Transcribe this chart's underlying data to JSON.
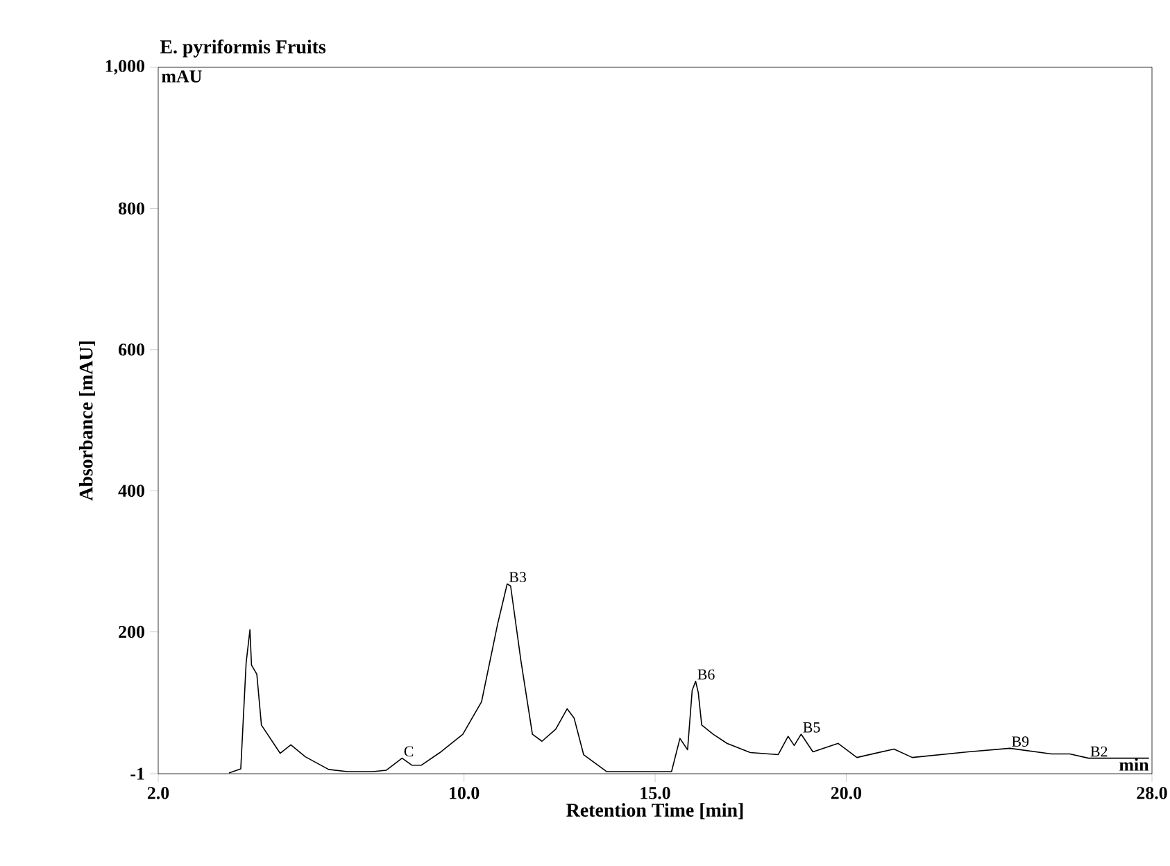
{
  "chart_data": {
    "type": "line",
    "title": "E. pyriformis Fruits",
    "xlabel": "Retention Time [min]",
    "ylabel": "Absorbance [mAU]",
    "xlim": [
      2,
      28
    ],
    "ylim": [
      -1,
      1000
    ],
    "xticks": [
      {
        "value": 2,
        "label": "2.0"
      },
      {
        "value": 10,
        "label": "10.0"
      },
      {
        "value": 15,
        "label": "15.0"
      },
      {
        "value": 20,
        "label": "20.0"
      },
      {
        "value": 28,
        "label": "28.0"
      }
    ],
    "yticks": [
      -1,
      200,
      400,
      600,
      800,
      {
        "value": 1000,
        "label": "1,000"
      }
    ],
    "grid": false,
    "marker": "none",
    "line_style": "solid",
    "series": [
      {
        "color": "#000000",
        "x": [
          3.85,
          4.16,
          4.3,
          4.4,
          4.44,
          4.58,
          4.7,
          5.19,
          5.47,
          5.85,
          6.46,
          6.95,
          7.61,
          7.97,
          8.38,
          8.64,
          8.88,
          9.37,
          9.97,
          10.46,
          10.88,
          11.13,
          11.22,
          11.49,
          11.79,
          12.04,
          12.4,
          12.7,
          12.88,
          13.13,
          13.73,
          15.43,
          15.65,
          15.85,
          15.97,
          16.06,
          16.13,
          16.22,
          16.52,
          16.88,
          17.49,
          18.22,
          18.48,
          18.64,
          18.82,
          19.13,
          19.79,
          20.28,
          21.25,
          21.73,
          23.19,
          24.28,
          25.37,
          25.85,
          26.34,
          27.92
        ],
        "values": [
          0,
          6,
          156,
          203,
          153,
          140,
          68,
          28,
          40,
          23,
          5,
          2,
          2,
          4,
          21,
          11,
          11,
          29,
          55,
          101,
          211,
          268,
          265,
          159,
          55,
          45,
          62,
          91,
          78,
          26,
          2,
          2,
          49,
          33,
          117,
          130,
          114,
          68,
          55,
          42,
          29,
          26,
          52,
          39,
          55,
          30,
          42,
          22,
          34,
          22,
          30,
          35,
          27,
          27,
          21,
          21
        ]
      }
    ],
    "annotations": [
      "mAU",
      "min",
      {
        "text": "C",
        "x": 8.38,
        "y": 21
      },
      {
        "text": "B3",
        "x": 11.13,
        "y": 268
      },
      {
        "text": "B6",
        "x": 16.06,
        "y": 130
      },
      {
        "text": "B5",
        "x": 18.82,
        "y": 55
      },
      {
        "text": "B9",
        "x": 24.28,
        "y": 35
      },
      {
        "text": "B2",
        "x": 26.34,
        "y": 21
      }
    ]
  }
}
